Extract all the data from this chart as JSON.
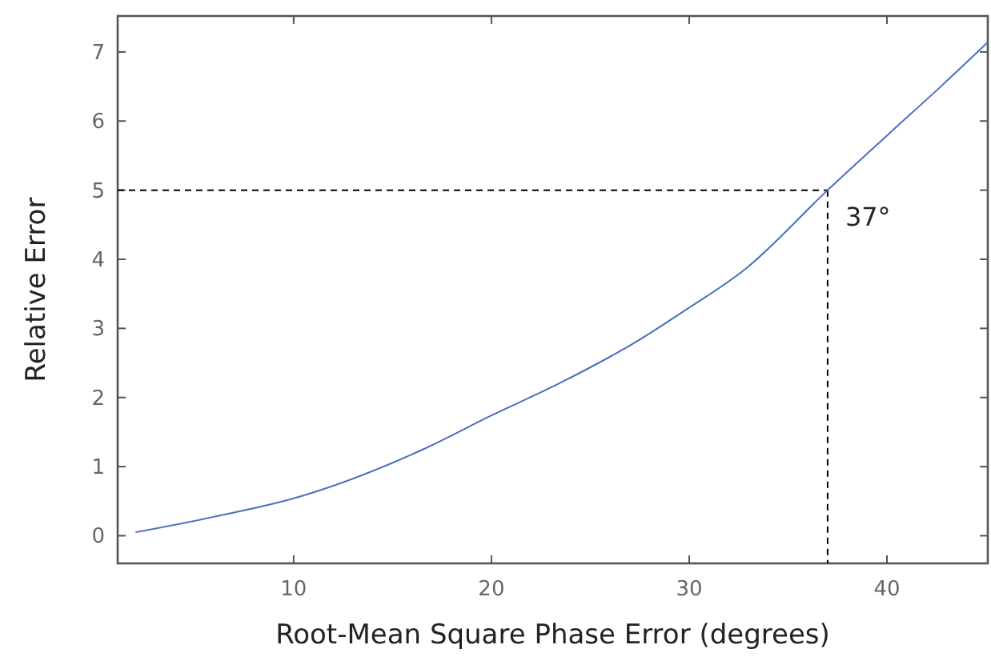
{
  "chart_data": {
    "type": "line",
    "xlabel": "Root-Mean Square Phase Error (degrees)",
    "ylabel": "Relative Error",
    "x": [
      2,
      5.9,
      10,
      16.7,
      20,
      23.4,
      27.4,
      30,
      32.8,
      37,
      40,
      42.8,
      45.1
    ],
    "series": [
      {
        "color": "#4a6fc0",
        "values": [
          0.05,
          0.27,
          0.54,
          1.27,
          1.74,
          2.2,
          2.82,
          3.3,
          3.85,
          5.0,
          5.79,
          6.52,
          7.14
        ]
      }
    ],
    "xlim": [
      1.1,
      45.1
    ],
    "ylim": [
      -0.4,
      7.52
    ],
    "xticks": [
      10,
      20,
      30,
      40
    ],
    "yticks": [
      0,
      1,
      2,
      3,
      4,
      5,
      6,
      7
    ],
    "ref_lines": [
      {
        "axis": "y",
        "value": 5,
        "color": "#000000",
        "line_style": "dashed"
      },
      {
        "axis": "x",
        "value": 37,
        "color": "#000000",
        "line_style": "dashed"
      }
    ],
    "annotations": [
      {
        "text": "37°",
        "x": 37,
        "y": 5
      }
    ],
    "marker": "none",
    "line_style": "solid"
  }
}
